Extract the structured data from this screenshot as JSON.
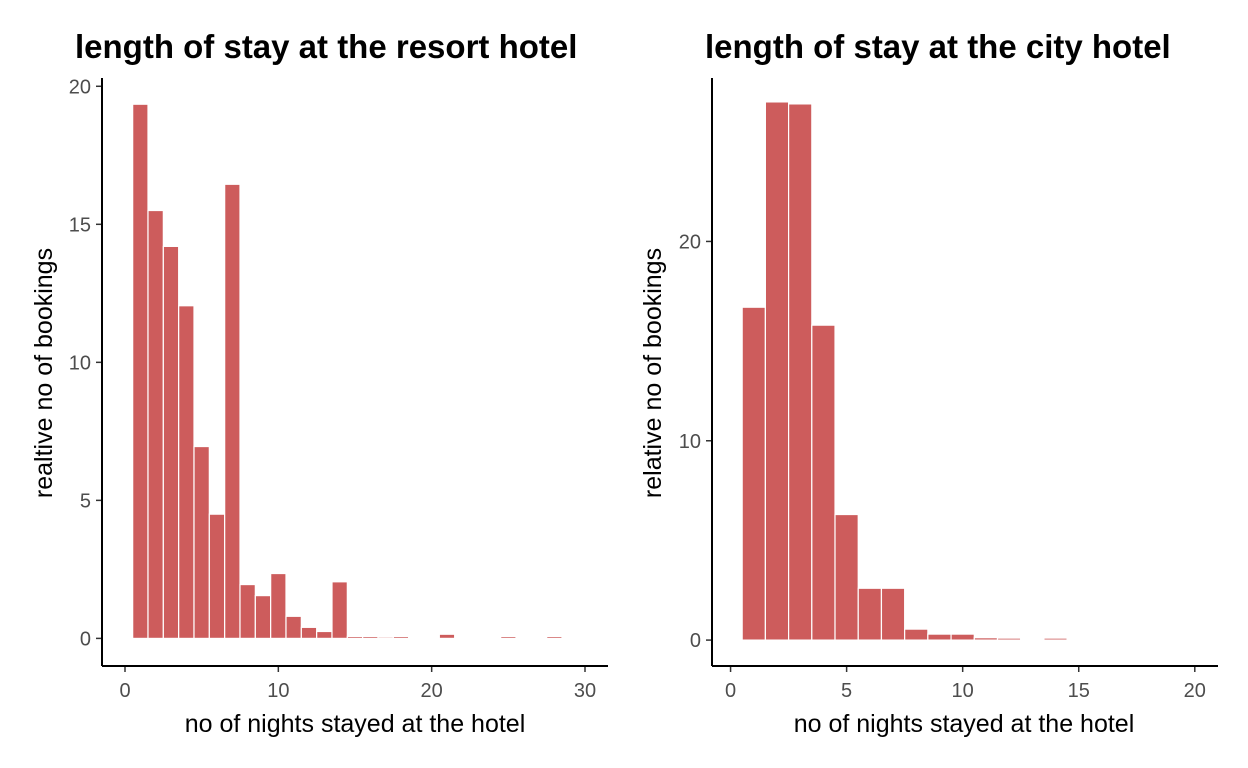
{
  "chart_data": [
    {
      "type": "bar",
      "title": "length of stay at the resort hotel",
      "xlabel": "no of nights stayed at the hotel",
      "ylabel": "realtive no of bookings",
      "xlim": [
        -1.5,
        31.5
      ],
      "ylim": [
        -1.0,
        20.3
      ],
      "xticks": [
        0,
        10,
        20,
        30
      ],
      "yticks": [
        0,
        5,
        10,
        15,
        20
      ],
      "grid": false,
      "bar_color": "#CD5C5C",
      "x": [
        1,
        2,
        3,
        4,
        5,
        6,
        7,
        8,
        9,
        10,
        11,
        12,
        13,
        14,
        15,
        16,
        17,
        18,
        19,
        20,
        21,
        22,
        23,
        24,
        25,
        26,
        27,
        28
      ],
      "values": [
        19.35,
        15.5,
        14.2,
        12.05,
        6.95,
        4.5,
        16.45,
        1.95,
        1.55,
        2.35,
        0.8,
        0.4,
        0.25,
        2.05,
        0.07,
        0.07,
        0.05,
        0.07,
        0.04,
        0,
        0.15,
        0,
        0,
        0,
        0.07,
        0,
        0,
        0.07
      ]
    },
    {
      "type": "bar",
      "title": "length of stay at the city hotel",
      "xlabel": "no of nights stayed at the hotel",
      "ylabel": "relative no of bookings",
      "xlim": [
        -0.8,
        21.0
      ],
      "ylim": [
        -1.3,
        28.2
      ],
      "xticks": [
        0,
        5,
        10,
        15,
        20
      ],
      "yticks": [
        0,
        10,
        20
      ],
      "grid": false,
      "bar_color": "#CD5C5C",
      "x": [
        1,
        2,
        3,
        4,
        5,
        6,
        7,
        8,
        9,
        10,
        11,
        12,
        13,
        14,
        15
      ],
      "values": [
        16.7,
        27.0,
        26.9,
        15.8,
        6.3,
        2.6,
        2.6,
        0.55,
        0.3,
        0.3,
        0.12,
        0.1,
        0.06,
        0.1,
        0.05
      ]
    }
  ]
}
